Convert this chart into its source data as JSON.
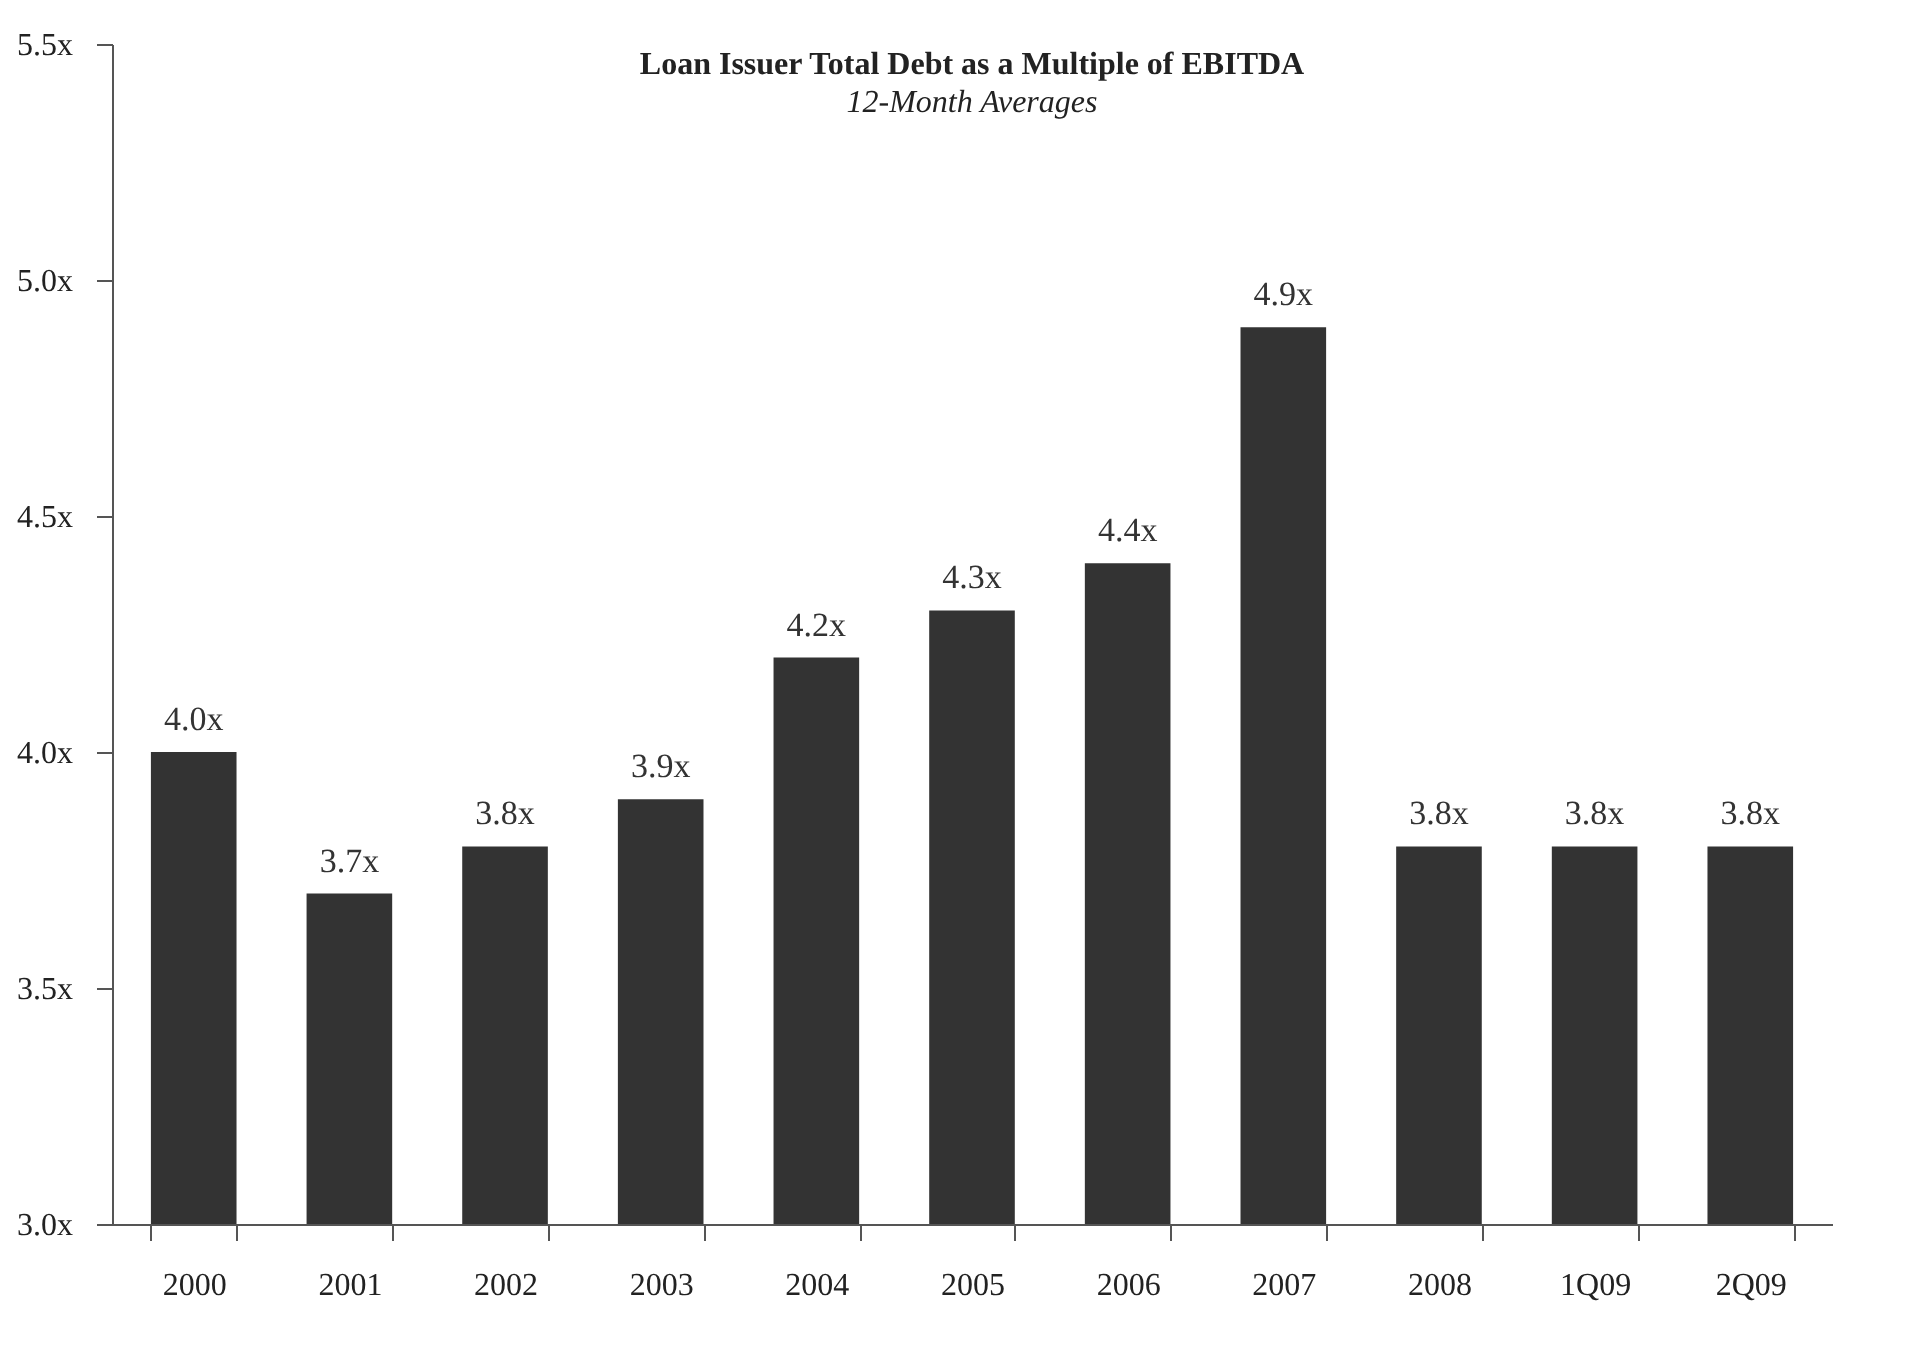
{
  "chart_data": {
    "type": "bar",
    "title": "Loan Issuer Total Debt as a Multiple of EBITDA",
    "subtitle": "12-Month Averages",
    "categories": [
      "2000",
      "2001",
      "2002",
      "2003",
      "2004",
      "2005",
      "2006",
      "2007",
      "2008",
      "1Q09",
      "2Q09"
    ],
    "values": [
      4.0,
      3.7,
      3.8,
      3.9,
      4.2,
      4.3,
      4.4,
      4.9,
      3.8,
      3.8,
      3.8
    ],
    "value_labels": [
      "4.0x",
      "3.7x",
      "3.8x",
      "3.9x",
      "4.2x",
      "4.3x",
      "4.4x",
      "4.9x",
      "3.8x",
      "3.8x",
      "3.8x"
    ],
    "color": "#333333",
    "ylim": [
      3,
      5.5
    ],
    "yticks": [
      {
        "value": 3,
        "label": "3.0x"
      },
      {
        "value": 3.5,
        "label": "3.5x"
      },
      {
        "value": 4,
        "label": "4.0x"
      },
      {
        "value": 4.5,
        "label": "4.5x"
      },
      {
        "value": 5,
        "label": "5.0x"
      },
      {
        "value": 5.5,
        "label": "5.5x"
      }
    ],
    "grid": false
  }
}
